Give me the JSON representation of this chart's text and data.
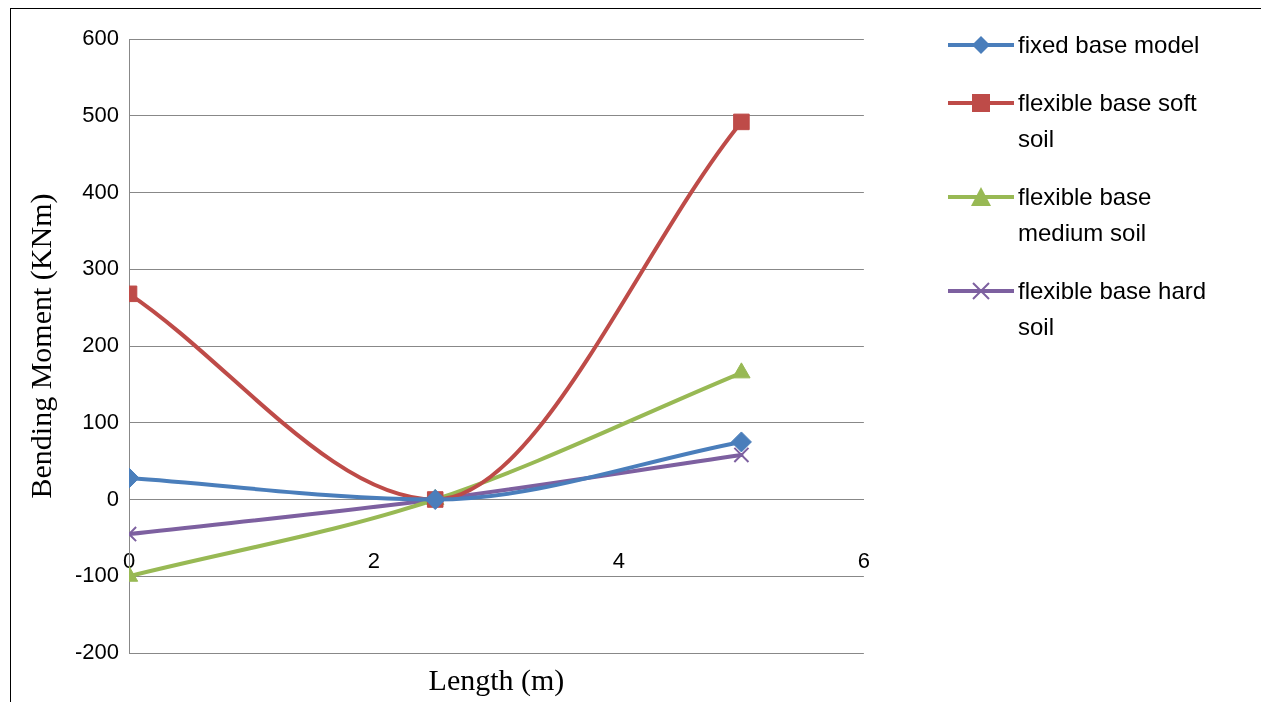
{
  "chart_data": {
    "type": "line",
    "xlabel": "Length (m)",
    "ylabel": "Bending Moment (KNm)",
    "xlim": [
      0,
      6
    ],
    "xticks": [
      0,
      2,
      4,
      6
    ],
    "ylim": [
      -200,
      600
    ],
    "yticks": [
      -200,
      -100,
      0,
      100,
      200,
      300,
      400,
      500,
      600
    ],
    "grid": "y",
    "legend": "right",
    "x": [
      0,
      2.5,
      5
    ],
    "series": [
      {
        "name": "fixed base model",
        "color": "#4a7ebb",
        "marker": "diamond",
        "values": [
          28,
          0,
          75
        ]
      },
      {
        "name": "flexible base soft soil",
        "color": "#be4b48",
        "marker": "square",
        "values": [
          268,
          0,
          492
        ]
      },
      {
        "name": "flexible base medium soil",
        "color": "#98b954",
        "marker": "triangle",
        "values": [
          -100,
          0,
          165
        ]
      },
      {
        "name": "flexible base hard soil",
        "color": "#7d60a0",
        "marker": "cross",
        "values": [
          -45,
          0,
          58
        ]
      }
    ]
  }
}
